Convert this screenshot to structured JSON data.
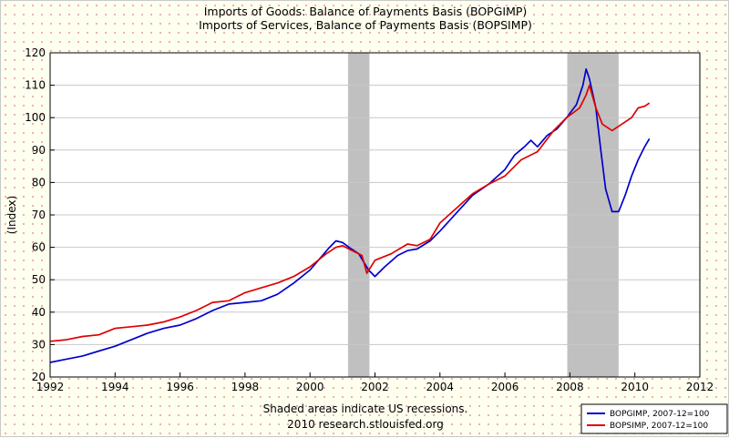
{
  "chart_data": {
    "type": "line",
    "title_lines": [
      "Imports of Goods: Balance of Payments Basis (BOPGIMP)",
      "Imports of Services, Balance of Payments Basis (BOPSIMP)"
    ],
    "ylabel": "(Index)",
    "xlim": [
      1992,
      2012
    ],
    "ylim": [
      20,
      120
    ],
    "x_ticks": [
      1992,
      1994,
      1996,
      1998,
      2000,
      2002,
      2004,
      2006,
      2008,
      2010,
      2012
    ],
    "y_ticks": [
      20,
      30,
      40,
      50,
      60,
      70,
      80,
      90,
      100,
      110,
      120
    ],
    "grid": true,
    "legend_position": "bottom-right",
    "recessions": [
      [
        2001.17,
        2001.83
      ],
      [
        2007.92,
        2009.5
      ]
    ],
    "recession_color": "#c0c0c0",
    "footer_lines": [
      "Shaded areas indicate US recessions.",
      "2010 research.stlouisfed.org"
    ],
    "series": [
      {
        "name": "BOPGIMP, 2007-12=100",
        "color": "#0000cc",
        "points": [
          [
            1992,
            24.5
          ],
          [
            1992.5,
            25.5
          ],
          [
            1993,
            26.5
          ],
          [
            1993.5,
            28
          ],
          [
            1994,
            29.5
          ],
          [
            1994.5,
            31.5
          ],
          [
            1995,
            33.5
          ],
          [
            1995.5,
            35
          ],
          [
            1996,
            36
          ],
          [
            1996.5,
            38
          ],
          [
            1997,
            40.5
          ],
          [
            1997.5,
            42.5
          ],
          [
            1998,
            43
          ],
          [
            1998.5,
            43.5
          ],
          [
            1999,
            45.5
          ],
          [
            1999.5,
            49
          ],
          [
            2000,
            53
          ],
          [
            2000.3,
            56.5
          ],
          [
            2000.6,
            60
          ],
          [
            2000.8,
            62
          ],
          [
            2001.0,
            61.5
          ],
          [
            2001.2,
            60
          ],
          [
            2001.5,
            58
          ],
          [
            2001.8,
            53
          ],
          [
            2002.0,
            51
          ],
          [
            2002.3,
            54
          ],
          [
            2002.7,
            57.5
          ],
          [
            2003.0,
            59
          ],
          [
            2003.3,
            59.5
          ],
          [
            2003.7,
            62
          ],
          [
            2004.0,
            65
          ],
          [
            2004.5,
            70.5
          ],
          [
            2005.0,
            76
          ],
          [
            2005.5,
            79.5
          ],
          [
            2006.0,
            84
          ],
          [
            2006.3,
            88.5
          ],
          [
            2006.6,
            91
          ],
          [
            2006.8,
            93
          ],
          [
            2007.0,
            91
          ],
          [
            2007.3,
            94.5
          ],
          [
            2007.6,
            96.5
          ],
          [
            2007.9,
            100
          ],
          [
            2008.2,
            104
          ],
          [
            2008.4,
            110
          ],
          [
            2008.5,
            115
          ],
          [
            2008.6,
            112
          ],
          [
            2008.8,
            103
          ],
          [
            2008.95,
            90
          ],
          [
            2009.1,
            78
          ],
          [
            2009.3,
            71
          ],
          [
            2009.5,
            71
          ],
          [
            2009.7,
            76
          ],
          [
            2009.9,
            82
          ],
          [
            2010.1,
            87
          ],
          [
            2010.3,
            91
          ],
          [
            2010.45,
            93.5
          ]
        ]
      },
      {
        "name": "BOPSIMP, 2007-12=100",
        "color": "#e00000",
        "points": [
          [
            1992,
            31
          ],
          [
            1992.5,
            31.5
          ],
          [
            1993,
            32.5
          ],
          [
            1993.5,
            33
          ],
          [
            1994,
            35
          ],
          [
            1994.5,
            35.5
          ],
          [
            1995,
            36
          ],
          [
            1995.5,
            37
          ],
          [
            1996,
            38.5
          ],
          [
            1996.5,
            40.5
          ],
          [
            1997,
            43
          ],
          [
            1997.5,
            43.5
          ],
          [
            1998,
            46
          ],
          [
            1998.5,
            47.5
          ],
          [
            1999,
            49
          ],
          [
            1999.5,
            51
          ],
          [
            2000,
            54
          ],
          [
            2000.5,
            58
          ],
          [
            2000.8,
            60
          ],
          [
            2001.0,
            60.5
          ],
          [
            2001.3,
            59
          ],
          [
            2001.6,
            57.5
          ],
          [
            2001.75,
            52
          ],
          [
            2002.0,
            56
          ],
          [
            2002.5,
            58
          ],
          [
            2003.0,
            61
          ],
          [
            2003.3,
            60.5
          ],
          [
            2003.7,
            62.5
          ],
          [
            2004.0,
            67.5
          ],
          [
            2004.5,
            72
          ],
          [
            2005.0,
            76.5
          ],
          [
            2005.5,
            79.5
          ],
          [
            2006.0,
            82
          ],
          [
            2006.5,
            87
          ],
          [
            2007.0,
            89.5
          ],
          [
            2007.5,
            96
          ],
          [
            2007.9,
            100
          ],
          [
            2008.3,
            103
          ],
          [
            2008.5,
            107
          ],
          [
            2008.6,
            110
          ],
          [
            2008.8,
            103
          ],
          [
            2009.0,
            98
          ],
          [
            2009.3,
            96
          ],
          [
            2009.6,
            98
          ],
          [
            2009.9,
            100
          ],
          [
            2010.1,
            103
          ],
          [
            2010.3,
            103.5
          ],
          [
            2010.45,
            104.5
          ]
        ]
      }
    ]
  }
}
